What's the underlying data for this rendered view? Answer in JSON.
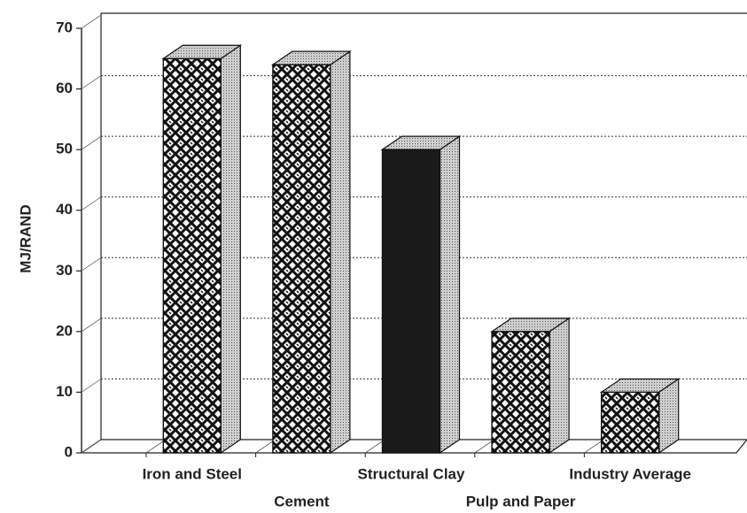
{
  "chart_data": {
    "type": "bar3d",
    "y_label": "MJ/RAND",
    "categories": [
      "Iron and Steel",
      "Cement",
      "Structural Clay",
      "Pulp and Paper",
      "Industry Average"
    ],
    "values": [
      65,
      64,
      50,
      20,
      10
    ],
    "fills": [
      "crosshatch",
      "crosshatch",
      "solid",
      "crosshatch",
      "crosshatch"
    ],
    "color": "#1a1a1a",
    "ylim": [
      0,
      70
    ],
    "yticks": [
      0,
      10,
      20,
      30,
      40,
      50,
      60,
      70
    ],
    "grid": true
  }
}
